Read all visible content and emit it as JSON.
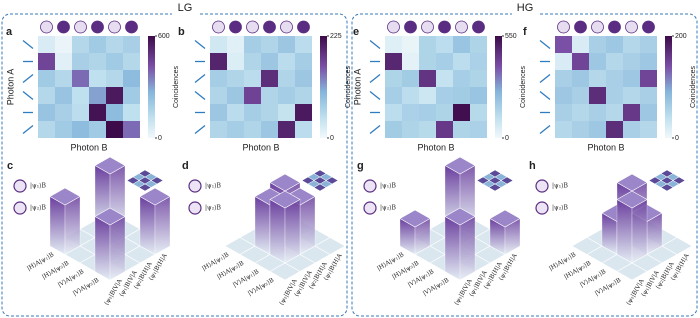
{
  "panel_titles": {
    "left": "LG",
    "right": "HG"
  },
  "chart_data": [
    {
      "type": "heatmap",
      "panel": "a",
      "xlabel": "Photon B",
      "ylabel": "Photon A",
      "colorbar_label": "Coincidences",
      "clim": [
        0,
        600
      ],
      "cticks": [
        0,
        600
      ],
      "values": [
        [
          60,
          20,
          150,
          200,
          150,
          180
        ],
        [
          450,
          40,
          180,
          160,
          200,
          150
        ],
        [
          200,
          150,
          380,
          120,
          150,
          250
        ],
        [
          150,
          220,
          120,
          300,
          560,
          200
        ],
        [
          220,
          180,
          130,
          580,
          250,
          120
        ],
        [
          150,
          200,
          250,
          200,
          600,
          380
        ]
      ]
    },
    {
      "type": "heatmap",
      "panel": "b",
      "xlabel": "Photon B",
      "colorbar_label": "Coincidences",
      "clim": [
        0,
        225
      ],
      "cticks": [
        0,
        225
      ],
      "values": [
        [
          30,
          15,
          70,
          60,
          80,
          50
        ],
        [
          200,
          20,
          60,
          80,
          50,
          70
        ],
        [
          70,
          60,
          50,
          190,
          60,
          80
        ],
        [
          60,
          80,
          170,
          60,
          70,
          60
        ],
        [
          80,
          50,
          70,
          60,
          40,
          210
        ],
        [
          60,
          70,
          60,
          80,
          200,
          50
        ]
      ]
    },
    {
      "type": "heatmap",
      "panel": "e",
      "xlabel": "Photon B",
      "ylabel": "Photon A",
      "colorbar_label": "Coincidences",
      "clim": [
        0,
        550
      ],
      "cticks": [
        0,
        550
      ],
      "values": [
        [
          40,
          20,
          150,
          120,
          200,
          150
        ],
        [
          480,
          30,
          150,
          170,
          120,
          160
        ],
        [
          150,
          180,
          450,
          100,
          170,
          150
        ],
        [
          170,
          120,
          80,
          170,
          180,
          200
        ],
        [
          120,
          160,
          170,
          150,
          540,
          130
        ],
        [
          180,
          150,
          130,
          440,
          150,
          160
        ]
      ]
    },
    {
      "type": "heatmap",
      "panel": "f",
      "xlabel": "Photon B",
      "colorbar_label": "Coincidences",
      "clim": [
        0,
        200
      ],
      "cticks": [
        0,
        200
      ],
      "values": [
        [
          140,
          20,
          60,
          70,
          50,
          60
        ],
        [
          20,
          150,
          70,
          50,
          60,
          70
        ],
        [
          60,
          70,
          50,
          60,
          70,
          150
        ],
        [
          70,
          60,
          170,
          60,
          50,
          60
        ],
        [
          60,
          50,
          60,
          50,
          160,
          70
        ],
        [
          50,
          60,
          70,
          170,
          60,
          50
        ]
      ]
    },
    {
      "type": "bar3d",
      "panel": "c",
      "kets": [
        "|ψ₁⟩B",
        "|ψ₂⟩B"
      ],
      "col_labels": [
        "|H⟩A|ψ₁⟩B",
        "|H⟩A|ψ₂⟩B",
        "|V⟩A|ψ₁⟩B",
        "|V⟩A|ψ₂⟩B"
      ],
      "row_labels": [
        "⟨ψ₁|B⟨H|A",
        "⟨ψ₂|B⟨H|A",
        "⟨ψ₁|B⟨V|A",
        "⟨ψ₂|B⟨V|A"
      ],
      "values": [
        [
          0.5,
          0,
          0,
          0.45
        ],
        [
          0,
          0,
          0,
          0
        ],
        [
          0,
          0,
          0,
          0
        ],
        [
          0.45,
          0,
          0,
          0.5
        ]
      ]
    },
    {
      "type": "bar3d",
      "panel": "d",
      "kets": [
        "|ψ₁⟩B",
        "|ψ₂⟩B"
      ],
      "col_labels": [
        "|H⟩A|ψ₁⟩B",
        "|H⟩A|ψ₂⟩B",
        "|V⟩A|ψ₁⟩B",
        "|V⟩A|ψ₂⟩B"
      ],
      "row_labels": [
        "⟨ψ₁|B⟨H|A",
        "⟨ψ₂|B⟨H|A",
        "⟨ψ₁|B⟨V|A",
        "⟨ψ₂|B⟨V|A"
      ],
      "values": [
        [
          0,
          0,
          0,
          0
        ],
        [
          0,
          0.5,
          0.45,
          0
        ],
        [
          0,
          0.45,
          0.5,
          0
        ],
        [
          0,
          0,
          0,
          0
        ]
      ]
    },
    {
      "type": "bar3d",
      "panel": "g",
      "kets": [
        "|ψ₁⟩B",
        "|ψ₂⟩B"
      ],
      "col_labels": [
        "|H⟩A|ψ₁⟩B",
        "|H⟩A|ψ₂⟩B",
        "|V⟩A|ψ₁⟩B",
        "|V⟩A|ψ₂⟩B"
      ],
      "row_labels": [
        "⟨ψ₁|B⟨H|A",
        "⟨ψ₂|B⟨H|A",
        "⟨ψ₁|B⟨V|A",
        "⟨ψ₂|B⟨V|A"
      ],
      "values": [
        [
          0.5,
          0,
          0,
          0.25
        ],
        [
          0,
          0,
          0,
          0
        ],
        [
          0,
          0,
          0,
          0
        ],
        [
          0.25,
          0,
          0,
          0.5
        ]
      ]
    },
    {
      "type": "bar3d",
      "panel": "h",
      "kets": [
        "|ψ₁⟩B",
        "|ψ₂⟩B"
      ],
      "col_labels": [
        "|H⟩A|ψ₁⟩B",
        "|H⟩A|ψ₂⟩B",
        "|V⟩A|ψ₁⟩B",
        "|V⟩A|ψ₂⟩B"
      ],
      "row_labels": [
        "⟨ψ₁|B⟨H|A",
        "⟨ψ₂|B⟨H|A",
        "⟨ψ₁|B⟨V|A",
        "⟨ψ₂|B⟨V|A"
      ],
      "values": [
        [
          0,
          0,
          0,
          0
        ],
        [
          0,
          0.5,
          0.3,
          0
        ],
        [
          0,
          0.3,
          0.5,
          0
        ],
        [
          0,
          0,
          0,
          0
        ]
      ]
    }
  ]
}
